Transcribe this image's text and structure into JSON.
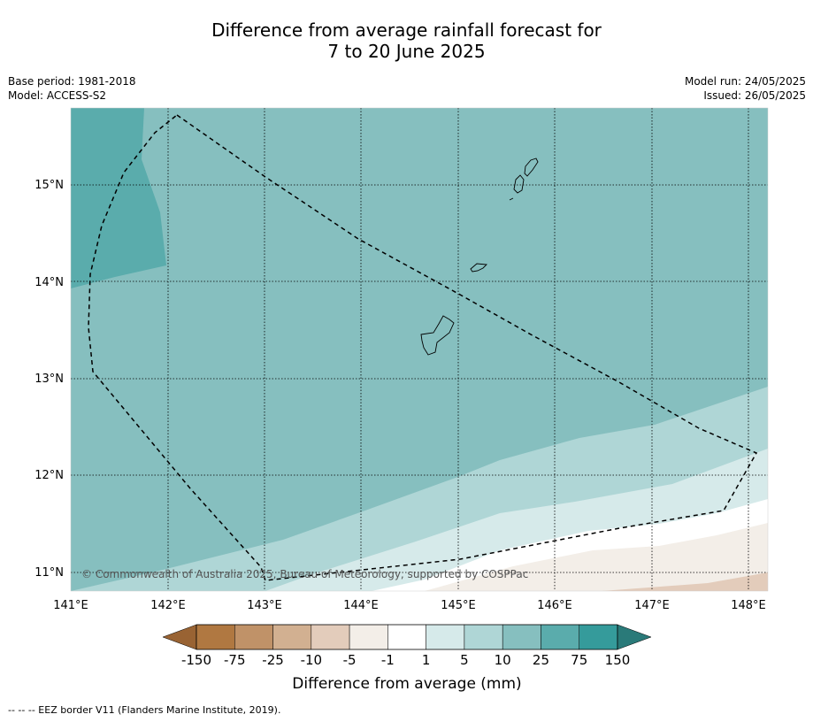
{
  "title": {
    "line1": "Difference from average rainfall forecast for",
    "line2": "7 to 20 June 2025"
  },
  "info_left": {
    "base_period": "Base period: 1981-2018",
    "model": "Model: ACCESS-S2"
  },
  "info_right": {
    "model_run": "Model run: 24/05/2025",
    "issued": "Issued: 26/05/2025"
  },
  "map": {
    "lon_range": [
      141,
      148.2
    ],
    "lat_range": [
      10.8,
      15.8
    ],
    "lon_ticks": [
      {
        "value": 141,
        "label": "141°E"
      },
      {
        "value": 142,
        "label": "142°E"
      },
      {
        "value": 143,
        "label": "143°E"
      },
      {
        "value": 144,
        "label": "144°E"
      },
      {
        "value": 145,
        "label": "145°E"
      },
      {
        "value": 146,
        "label": "146°E"
      },
      {
        "value": 147,
        "label": "147°E"
      },
      {
        "value": 148,
        "label": "148°E"
      }
    ],
    "lat_ticks": [
      {
        "value": 11,
        "label": "11°N"
      },
      {
        "value": 12,
        "label": "12°N"
      },
      {
        "value": 13,
        "label": "13°N"
      },
      {
        "value": 14,
        "label": "14°N"
      },
      {
        "value": 15,
        "label": "15°N"
      }
    ],
    "copyright": "© Commonwealth of Australia 2025, Bureau of Meteorology, supported by COSPPac",
    "colors": {
      "gt_25": "#5aacac",
      "10_to_25": "#86bfbf",
      "5_to_10": "#afd6d6",
      "1_to_5": "#d6eaea",
      "neg1_to_1": "#ffffff",
      "neg5_to_neg1": "#f3eee8",
      "neg10_to_neg5": "#e3ccbb"
    }
  },
  "legend": {
    "title": "Difference from average (mm)",
    "ticks": [
      "-150",
      "-75",
      "-25",
      "-10",
      "-5",
      "-1",
      "1",
      "5",
      "10",
      "25",
      "75",
      "150"
    ],
    "colors": [
      "#b07841",
      "#c09268",
      "#d2b091",
      "#e3ccbb",
      "#f3eee8",
      "#ffffff",
      "#d6eaea",
      "#afd6d6",
      "#86bfbf",
      "#5aacac",
      "#359b9b"
    ],
    "under_color": "#996333",
    "over_color": "#2a7a79"
  },
  "footer": "--  --  -- EEZ border V11 (Flanders Marine Institute, 2019)."
}
